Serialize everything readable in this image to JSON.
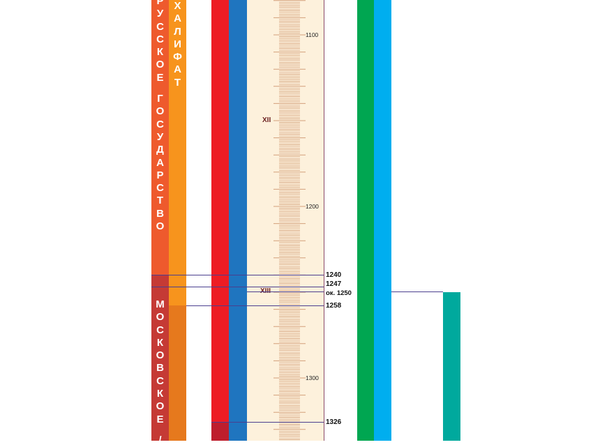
{
  "columns": {
    "russian_state": {
      "label": "РУССКОЕ ГОСУДАРСТВО",
      "color_main": "#ee5a2d",
      "color_lower": "#c53a35"
    },
    "caliphate": {
      "label": "ХАЛИФАТ",
      "color_main": "#f7941d",
      "color_lower": "#e6791d"
    },
    "moscow_state": {
      "label": "МОСКОВСКОЕ /",
      "color": "#c53a35"
    },
    "red_bar": {
      "color": "#ed1c24",
      "color_lower": "#be1e2d"
    },
    "blue_bar": {
      "color": "#1f75bf"
    },
    "green_bar": {
      "color": "#00a651"
    },
    "cyan_bar": {
      "color": "#00aeef"
    },
    "teal_bar": {
      "color": "#00a99d"
    }
  },
  "timeline": {
    "background": "#fdf1dc",
    "tick_color": "#d3a07a",
    "axis_labels": [
      "1100",
      "1200",
      "1300"
    ],
    "centuries": [
      "XII",
      "XIII"
    ],
    "events": [
      "1240",
      "1247",
      "ок. 1250",
      "1258",
      "1326"
    ]
  }
}
